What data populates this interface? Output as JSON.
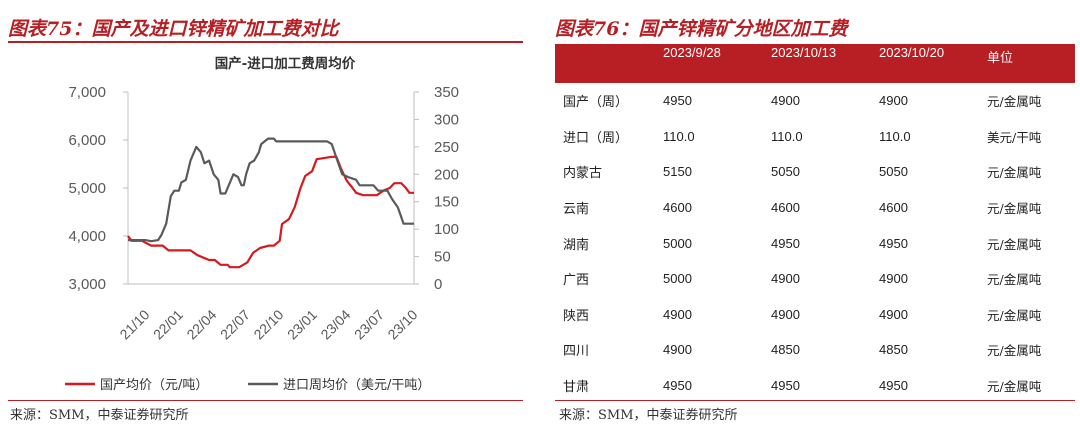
{
  "left_panel": {
    "figure_title": "图表75：国产及进口锌精矿加工费对比",
    "source": "来源：SMM，中泰证券研究所"
  },
  "right_panel": {
    "figure_title": "图表76：国产锌精矿分地区加工费",
    "source": "来源：SMM，中泰证券研究所",
    "table": {
      "headers": [
        "",
        "2023/9/28",
        "2023/10/13",
        "2023/10/20",
        "单位"
      ],
      "rows": [
        [
          "国产（周）",
          "4950",
          "4900",
          "4900",
          "元/金属吨"
        ],
        [
          "进口（周）",
          "110.0",
          "110.0",
          "110.0",
          "美元/干吨"
        ],
        [
          "内蒙古",
          "5150",
          "5050",
          "5050",
          "元/金属吨"
        ],
        [
          "云南",
          "4600",
          "4600",
          "4600",
          "元/金属吨"
        ],
        [
          "湖南",
          "5000",
          "4950",
          "4950",
          "元/金属吨"
        ],
        [
          "广西",
          "5000",
          "4900",
          "4900",
          "元/金属吨"
        ],
        [
          "陕西",
          "4900",
          "4900",
          "4900",
          "元/金属吨"
        ],
        [
          "四川",
          "4900",
          "4850",
          "4850",
          "元/金属吨"
        ],
        [
          "甘肃",
          "4950",
          "4950",
          "4950",
          "元/金属吨"
        ]
      ]
    }
  },
  "chart_data": {
    "type": "line",
    "title": "国产-进口加工费周均价",
    "x_tick_labels": [
      "21/10",
      "22/01",
      "22/04",
      "22/07",
      "22/10",
      "23/01",
      "23/04",
      "23/07",
      "23/10"
    ],
    "x_range": [
      0,
      24.7
    ],
    "y_left": {
      "min": 3000,
      "max": 7000,
      "ticks": [
        "3,000",
        "4,000",
        "5,000",
        "6,000",
        "7,000"
      ]
    },
    "y_right": {
      "min": 0,
      "max": 350,
      "ticks": [
        "0",
        "50",
        "100",
        "150",
        "200",
        "250",
        "300",
        "350"
      ]
    },
    "legend_position": "bottom",
    "series": [
      {
        "name": "国产均价（元/吨）",
        "axis": "left",
        "color": "#d7191f",
        "points": [
          [
            0,
            4000
          ],
          [
            0.3,
            3900
          ],
          [
            1.2,
            3900
          ],
          [
            2.0,
            3800
          ],
          [
            3.0,
            3800
          ],
          [
            3.5,
            3700
          ],
          [
            5.4,
            3700
          ],
          [
            6.0,
            3600
          ],
          [
            7.0,
            3500
          ],
          [
            7.5,
            3500
          ],
          [
            8.0,
            3400
          ],
          [
            8.6,
            3400
          ],
          [
            8.8,
            3350
          ],
          [
            9.6,
            3350
          ],
          [
            10.3,
            3450
          ],
          [
            10.8,
            3650
          ],
          [
            11.4,
            3750
          ],
          [
            12.2,
            3800
          ],
          [
            12.6,
            3800
          ],
          [
            13.1,
            3900
          ],
          [
            13.3,
            4250
          ],
          [
            13.9,
            4350
          ],
          [
            14.4,
            4600
          ],
          [
            14.9,
            5000
          ],
          [
            15.3,
            5250
          ],
          [
            15.9,
            5350
          ],
          [
            16.3,
            5600
          ],
          [
            17.6,
            5650
          ],
          [
            18.0,
            5650
          ],
          [
            18.4,
            5400
          ],
          [
            18.9,
            5150
          ],
          [
            19.4,
            5000
          ],
          [
            19.7,
            4900
          ],
          [
            20.3,
            4850
          ],
          [
            21.5,
            4850
          ],
          [
            22.1,
            4950
          ],
          [
            22.6,
            5000
          ],
          [
            23.0,
            5100
          ],
          [
            23.6,
            5100
          ],
          [
            24.0,
            5000
          ],
          [
            24.3,
            4900
          ],
          [
            24.7,
            4900
          ]
        ]
      },
      {
        "name": "进口周均价（美元/干吨）",
        "axis": "right",
        "color": "#5a5a5a",
        "points": [
          [
            0,
            80
          ],
          [
            0.5,
            80
          ],
          [
            1.5,
            80
          ],
          [
            2.0,
            78
          ],
          [
            2.6,
            80
          ],
          [
            2.9,
            90
          ],
          [
            3.3,
            110
          ],
          [
            3.7,
            160
          ],
          [
            4.0,
            170
          ],
          [
            4.4,
            170
          ],
          [
            4.6,
            185
          ],
          [
            5.0,
            190
          ],
          [
            5.4,
            225
          ],
          [
            5.9,
            250
          ],
          [
            6.3,
            240
          ],
          [
            6.6,
            220
          ],
          [
            7.0,
            225
          ],
          [
            7.4,
            200
          ],
          [
            7.8,
            190
          ],
          [
            8.0,
            165
          ],
          [
            8.4,
            165
          ],
          [
            8.6,
            175
          ],
          [
            9.1,
            200
          ],
          [
            9.5,
            195
          ],
          [
            9.8,
            180
          ],
          [
            10.0,
            180
          ],
          [
            10.2,
            200
          ],
          [
            10.5,
            220
          ],
          [
            10.9,
            225
          ],
          [
            11.3,
            240
          ],
          [
            11.5,
            255
          ],
          [
            12.1,
            265
          ],
          [
            12.6,
            265
          ],
          [
            12.8,
            260
          ],
          [
            13.5,
            260
          ],
          [
            14.0,
            260
          ],
          [
            16.0,
            260
          ],
          [
            17.2,
            260
          ],
          [
            17.6,
            255
          ],
          [
            18.0,
            230
          ],
          [
            18.5,
            200
          ],
          [
            19.0,
            195
          ],
          [
            19.7,
            190
          ],
          [
            20.0,
            180
          ],
          [
            20.8,
            180
          ],
          [
            21.2,
            180
          ],
          [
            21.6,
            170
          ],
          [
            22.4,
            170
          ],
          [
            22.8,
            155
          ],
          [
            23.3,
            140
          ],
          [
            23.8,
            110
          ],
          [
            24.7,
            110
          ]
        ]
      }
    ]
  }
}
